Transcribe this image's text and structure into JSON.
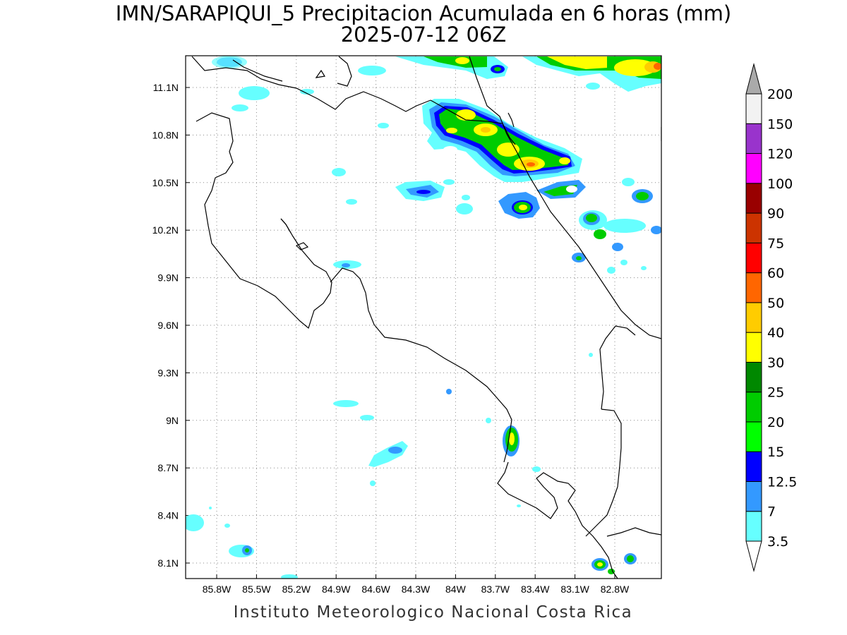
{
  "title": {
    "line1": "IMN/SARAPIQUI_5 Precipitacion Acumulada en 6 horas (mm)",
    "line2": "2025-07-12 06Z"
  },
  "footer": "Instituto Meteorologico Nacional Costa Rica",
  "axes": {
    "lon_ticks": [
      "85.8W",
      "85.5W",
      "85.2W",
      "84.9W",
      "84.6W",
      "84.3W",
      "84W",
      "83.7W",
      "83.4W",
      "83.1W",
      "82.8W"
    ],
    "lat_ticks": [
      "11.1N",
      "10.8N",
      "10.5N",
      "10.2N",
      "9.9N",
      "9.6N",
      "9.3N",
      "9N",
      "8.7N",
      "8.4N",
      "8.1N"
    ],
    "grid": "dotted"
  },
  "colorbar": {
    "levels": [
      "3.5",
      "7",
      "12.5",
      "15",
      "20",
      "25",
      "30",
      "40",
      "50",
      "60",
      "75",
      "90",
      "100",
      "120",
      "150",
      "200"
    ],
    "colors": [
      "#66ffff",
      "#3399ff",
      "#0000ff",
      "#00ff00",
      "#00cc00",
      "#008800",
      "#ffff00",
      "#ffcc00",
      "#ff6600",
      "#ff0000",
      "#cc3300",
      "#990000",
      "#ff00ff",
      "#9933cc",
      "#f2f2f2",
      "#aaaaaa"
    ]
  }
}
